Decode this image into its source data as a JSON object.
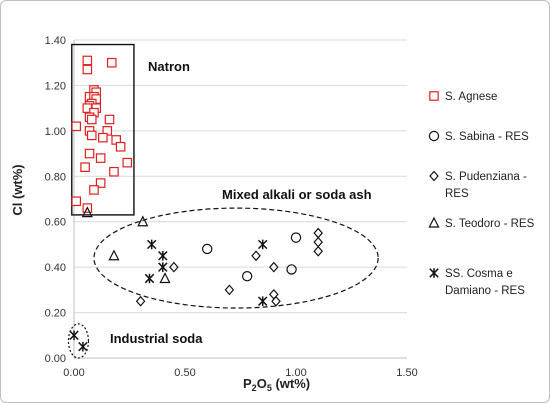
{
  "chart_data": {
    "type": "scatter",
    "xlabel_main": "P",
    "xlabel_sub": "2",
    "xlabel_rest": "O",
    "xlabel_sub2": "5",
    "xlabel_unit": " (wt%)",
    "ylabel": "Cl (wt%)",
    "xlim": [
      0,
      1.5
    ],
    "ylim": [
      0,
      1.4
    ],
    "x_ticks": [
      {
        "v": 0.0,
        "label": "0.00"
      },
      {
        "v": 0.5,
        "label": "0.50"
      },
      {
        "v": 1.0,
        "label": "1.00"
      },
      {
        "v": 1.5,
        "label": "1.50"
      }
    ],
    "y_ticks": [
      {
        "v": 0.0,
        "label": "0.00"
      },
      {
        "v": 0.2,
        "label": "0.20"
      },
      {
        "v": 0.4,
        "label": "0.40"
      },
      {
        "v": 0.6,
        "label": "0.60"
      },
      {
        "v": 0.8,
        "label": "0.80"
      },
      {
        "v": 1.0,
        "label": "1.00"
      },
      {
        "v": 1.2,
        "label": "1.20"
      },
      {
        "v": 1.4,
        "label": "1.40"
      }
    ],
    "grid": "horizontal",
    "legend_position": "right",
    "annotations": {
      "natron": "Natron",
      "mixed": "Mixed alkali or soda ash",
      "industrial": "Industrial soda"
    },
    "regions": {
      "natron_box": {
        "x0": -0.01,
        "x1": 0.27,
        "y0": 0.63,
        "y1": 1.38
      },
      "mixed_ellipse": {
        "cx": 0.73,
        "cy": 0.44,
        "rx": 0.64,
        "ry": 0.22
      },
      "industrial_ellipse": {
        "cx": 0.02,
        "cy": 0.075,
        "rx": 0.045,
        "ry": 0.075
      }
    },
    "series": [
      {
        "name": "S. Agnese",
        "marker": "square",
        "color": "#e02020",
        "points": [
          [
            0.06,
            1.31
          ],
          [
            0.17,
            1.3
          ],
          [
            0.06,
            1.27
          ],
          [
            0.09,
            1.18
          ],
          [
            0.1,
            1.17
          ],
          [
            0.07,
            1.15
          ],
          [
            0.09,
            1.15
          ],
          [
            0.1,
            1.14
          ],
          [
            0.08,
            1.12
          ],
          [
            0.07,
            1.11
          ],
          [
            0.1,
            1.1
          ],
          [
            0.06,
            1.1
          ],
          [
            0.09,
            1.08
          ],
          [
            0.07,
            1.06
          ],
          [
            0.08,
            1.05
          ],
          [
            0.16,
            1.05
          ],
          [
            0.01,
            1.02
          ],
          [
            0.07,
            1.0
          ],
          [
            0.15,
            1.0
          ],
          [
            0.08,
            0.98
          ],
          [
            0.13,
            0.97
          ],
          [
            0.19,
            0.96
          ],
          [
            0.21,
            0.93
          ],
          [
            0.07,
            0.9
          ],
          [
            0.12,
            0.88
          ],
          [
            0.24,
            0.86
          ],
          [
            0.05,
            0.84
          ],
          [
            0.18,
            0.82
          ],
          [
            0.12,
            0.77
          ],
          [
            0.09,
            0.74
          ],
          [
            0.01,
            0.69
          ],
          [
            0.06,
            0.66
          ]
        ]
      },
      {
        "name": "S. Sabina - RES",
        "marker": "circle",
        "color": "#111111",
        "points": [
          [
            0.6,
            0.48
          ],
          [
            0.78,
            0.36
          ],
          [
            0.98,
            0.39
          ],
          [
            1.0,
            0.53
          ]
        ]
      },
      {
        "name": "S. Pudenziana - RES",
        "marker": "diamond",
        "color": "#111111",
        "points": [
          [
            0.3,
            0.25
          ],
          [
            0.45,
            0.4
          ],
          [
            0.7,
            0.3
          ],
          [
            0.82,
            0.45
          ],
          [
            0.9,
            0.4
          ],
          [
            0.9,
            0.28
          ],
          [
            0.91,
            0.25
          ],
          [
            1.1,
            0.55
          ],
          [
            1.1,
            0.51
          ],
          [
            1.1,
            0.47
          ]
        ]
      },
      {
        "name": "S. Teodoro - RES",
        "marker": "triangle",
        "color": "#111111",
        "points": [
          [
            0.06,
            0.64
          ],
          [
            0.31,
            0.6
          ],
          [
            0.18,
            0.45
          ],
          [
            0.41,
            0.35
          ]
        ]
      },
      {
        "name": "SS. Cosma e Damiano - RES",
        "marker": "asterisk",
        "color": "#111111",
        "points": [
          [
            0.35,
            0.5
          ],
          [
            0.4,
            0.45
          ],
          [
            0.34,
            0.35
          ],
          [
            0.4,
            0.4
          ],
          [
            0.85,
            0.5
          ],
          [
            0.85,
            0.25
          ],
          [
            0.0,
            0.1
          ],
          [
            0.04,
            0.05
          ]
        ]
      }
    ],
    "legend": [
      {
        "marker": "square",
        "color": "#e02020",
        "lines": [
          "S. Agnese"
        ]
      },
      {
        "marker": "circle",
        "color": "#111111",
        "lines": [
          "S. Sabina - RES"
        ]
      },
      {
        "marker": "diamond",
        "color": "#111111",
        "lines": [
          "S. Pudenziana -",
          "RES"
        ]
      },
      {
        "marker": "triangle",
        "color": "#111111",
        "lines": [
          "S. Teodoro - RES"
        ]
      },
      {
        "marker": "asterisk",
        "color": "#111111",
        "lines": [
          "SS. Cosma e",
          "Damiano - RES"
        ]
      }
    ]
  }
}
